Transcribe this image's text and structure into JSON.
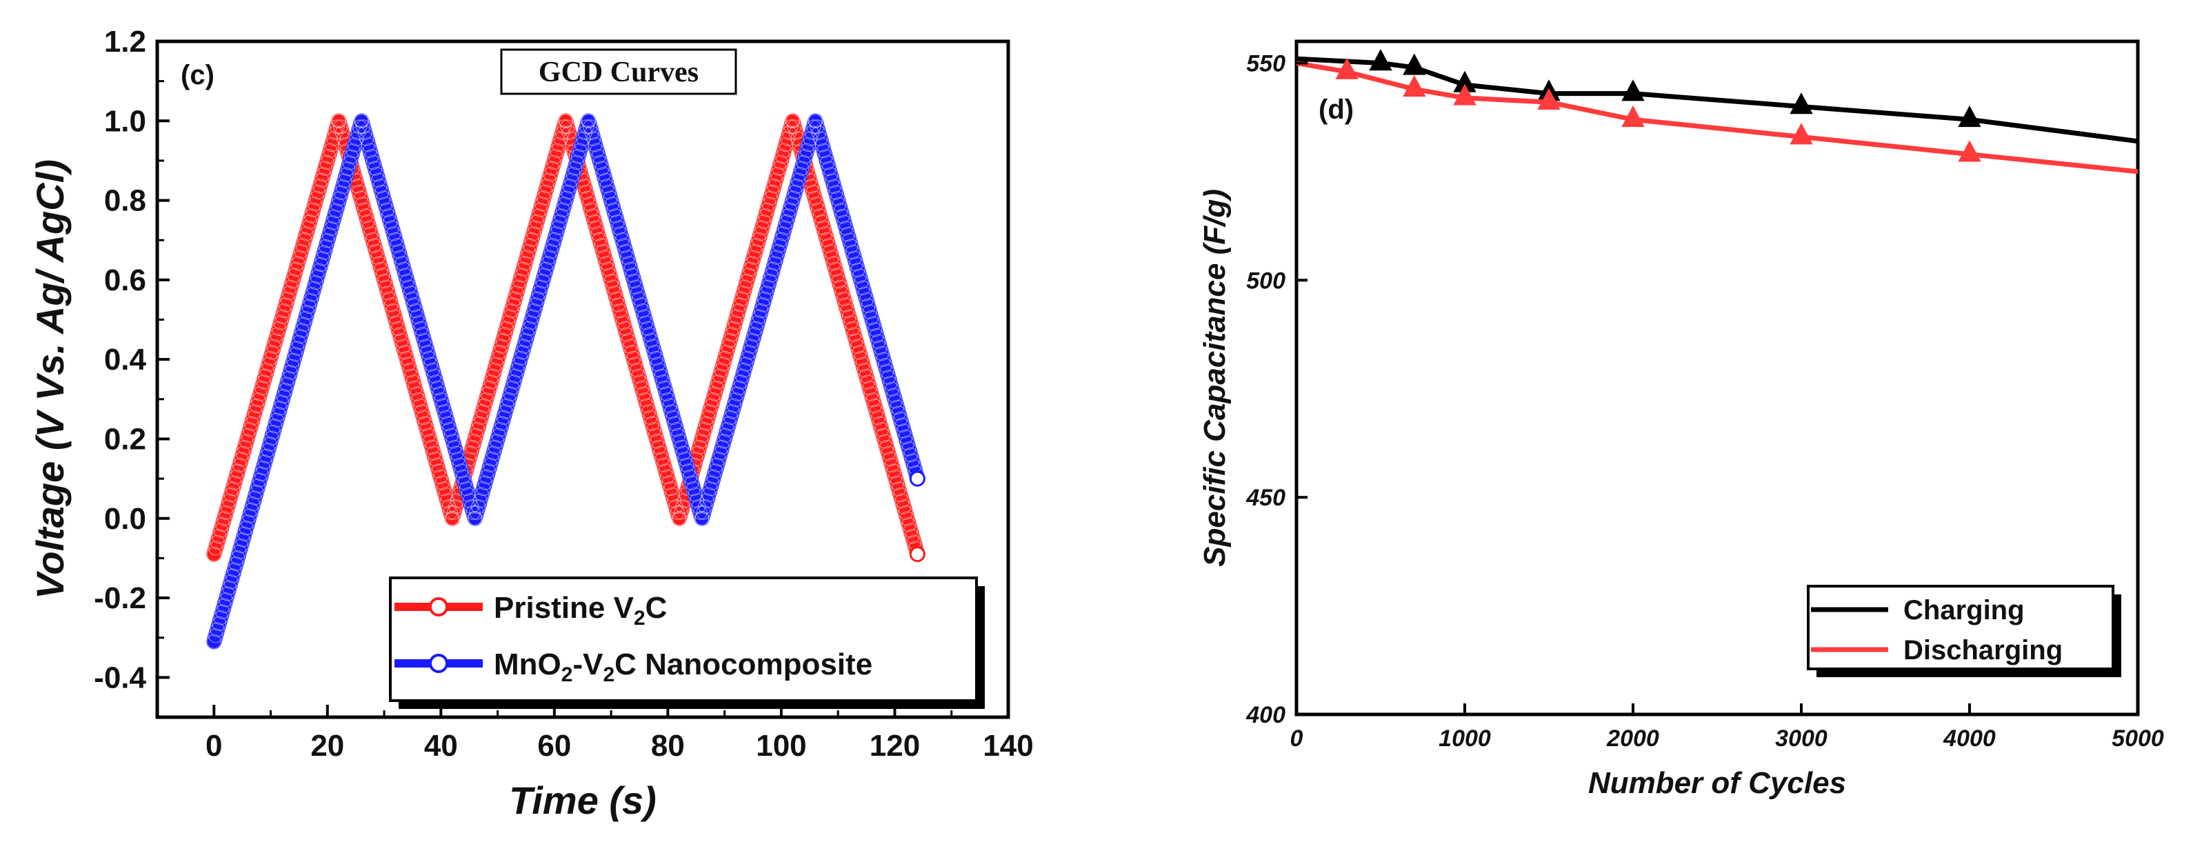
{
  "chart_data": [
    {
      "type": "scatter",
      "panel_label": "(c)",
      "title": "GCD Curves",
      "xlabel": "Time (s)",
      "ylabel": "Voltage (V Vs. Ag/ AgCl)",
      "xlim": [
        -10,
        140
      ],
      "ylim": [
        -0.5,
        1.2
      ],
      "xticks": [
        "0",
        "20",
        "40",
        "60",
        "80",
        "100",
        "120",
        "140"
      ],
      "yticks": [
        "-0.4",
        "-0.2",
        "0.0",
        "0.2",
        "0.4",
        "0.6",
        "0.8",
        "1.0",
        "1.2"
      ],
      "series": [
        {
          "name_main": "Pristine V",
          "name_sub": "2",
          "name_tail": "C",
          "color": "#ff1a1a",
          "vertices": [
            [
              0,
              -0.09
            ],
            [
              22,
              1.0
            ],
            [
              42,
              0.0
            ],
            [
              62,
              1.0
            ],
            [
              82,
              0.0
            ],
            [
              102,
              1.0
            ],
            [
              124,
              -0.09
            ]
          ]
        },
        {
          "name_main": "MnO",
          "name_sub": "2",
          "name_tail": "-V",
          "name_sub2": "2",
          "name_tail2": "C Nanocomposite",
          "color": "#1a1aff",
          "vertices": [
            [
              0,
              -0.31
            ],
            [
              26,
              1.0
            ],
            [
              46,
              0.0
            ],
            [
              66,
              1.0
            ],
            [
              86,
              0.0
            ],
            [
              106,
              1.0
            ],
            [
              124,
              0.1
            ]
          ]
        }
      ]
    },
    {
      "type": "line",
      "panel_label": "(d)",
      "xlabel": "Number of Cycles",
      "ylabel": "Specific Capacitance (F/g)",
      "xlim": [
        0,
        5000
      ],
      "ylim": [
        400,
        555
      ],
      "xticks": [
        "0",
        "1000",
        "2000",
        "3000",
        "4000",
        "5000"
      ],
      "yticks": [
        "400",
        "450",
        "500",
        "550"
      ],
      "series": [
        {
          "name": "Charging",
          "color": "#000000",
          "x": [
            0,
            500,
            700,
            1000,
            1500,
            2000,
            3000,
            4000,
            5000
          ],
          "y": [
            551,
            550,
            549,
            545,
            543,
            543,
            540,
            537,
            532
          ],
          "markers_at": [
            500,
            700,
            1000,
            1500,
            2000,
            3000,
            4000
          ]
        },
        {
          "name": "Discharging",
          "color": "#ff3b3b",
          "x": [
            0,
            300,
            700,
            1000,
            1500,
            2000,
            3000,
            4000,
            5000
          ],
          "y": [
            550,
            548,
            544,
            542,
            541,
            537,
            533,
            529,
            525
          ],
          "markers_at": [
            300,
            700,
            1000,
            1500,
            2000,
            3000,
            4000
          ]
        }
      ]
    }
  ]
}
